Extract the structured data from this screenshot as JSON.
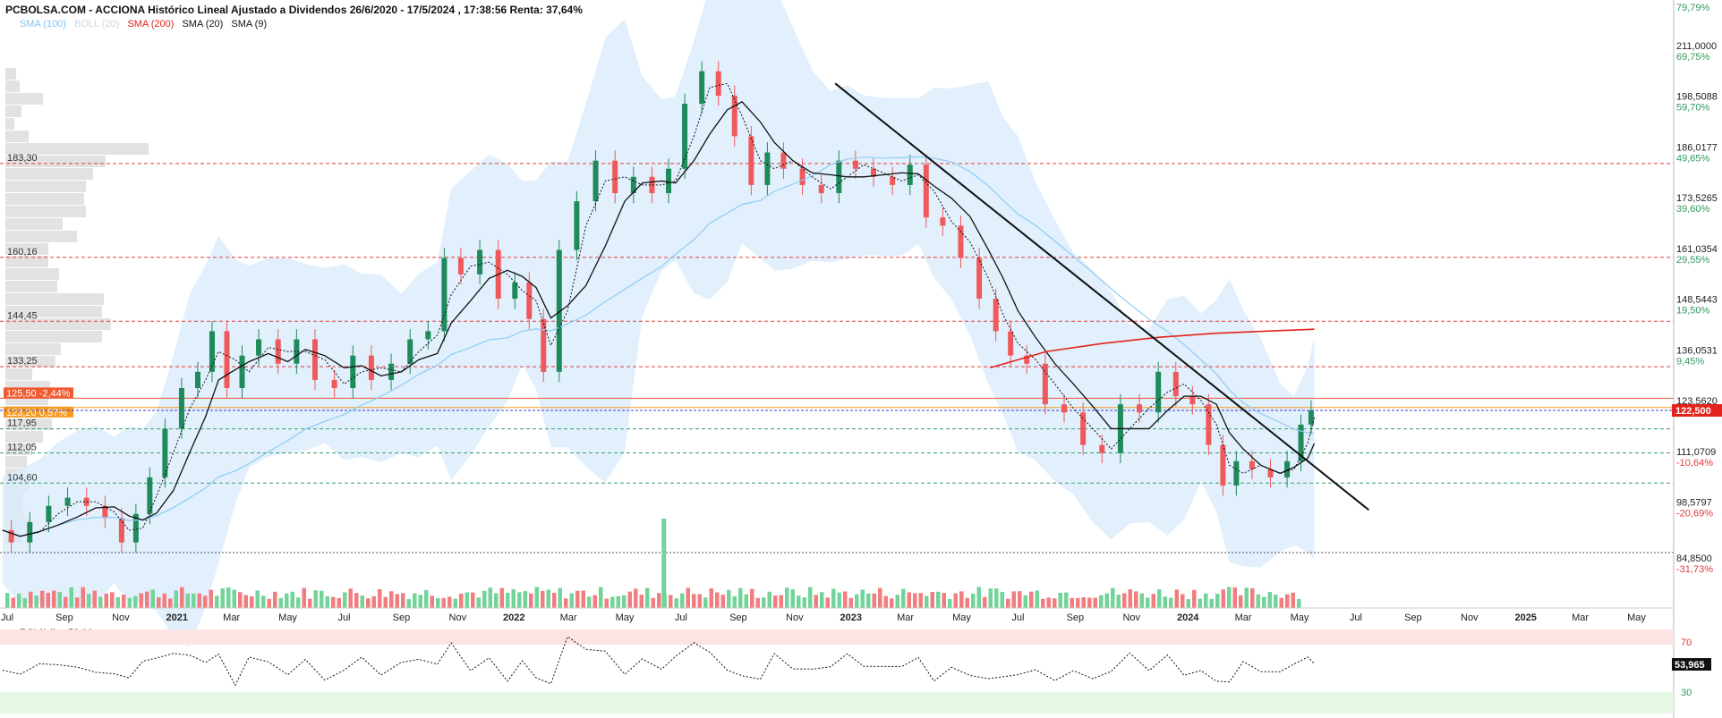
{
  "header": {
    "title": "PCBOLSA.COM - ACCIONA Histórico Lineal Ajustado a Dividendos 26/6/2020 - 17/5/2024 , 17:38:56 Renta: 37,64%",
    "top_right_pct": "79,79%"
  },
  "legend": [
    {
      "label": "SMA (100)",
      "color": "#7cc4f4"
    },
    {
      "label": "BOLL (20)",
      "color": "#cfd8e0"
    },
    {
      "label": "SMA (200)",
      "color": "#e3231b"
    },
    {
      "label": "SMA (20)",
      "color": "#111111"
    },
    {
      "label": "SMA (9)",
      "color": "#111111"
    }
  ],
  "rsi": {
    "label": "RSI (14)",
    "value": "53,96",
    "level_high": "70",
    "level_low": "30",
    "current_tag": "53,965"
  },
  "chart_data": {
    "type": "candlestick",
    "price_axis_ticks": [
      {
        "price": "211,0000",
        "pct": "69,75%"
      },
      {
        "price": "198,5088",
        "pct": "59,70%"
      },
      {
        "price": "186,0177",
        "pct": "49,65%"
      },
      {
        "price": "173,5265",
        "pct": "39,60%"
      },
      {
        "price": "161,0354",
        "pct": "29,55%"
      },
      {
        "price": "148,5443",
        "pct": "19,50%"
      },
      {
        "price": "136,0531",
        "pct": "9,45%"
      },
      {
        "price": "123,5620",
        "pct": ""
      },
      {
        "price": "111,0709",
        "pct": "-10,64%"
      },
      {
        "price": "98,5797",
        "pct": "-20,69%"
      },
      {
        "price": "84,8500",
        "pct": "-31,73%"
      }
    ],
    "last_price_tag": "122,500",
    "x_ticks": [
      "Jul",
      "Sep",
      "Nov",
      "2021",
      "Mar",
      "May",
      "Jul",
      "Sep",
      "Nov",
      "2022",
      "Mar",
      "May",
      "Jul",
      "Sep",
      "Nov",
      "2023",
      "Mar",
      "May",
      "Jul",
      "Sep",
      "Nov",
      "2024",
      "Mar",
      "May",
      "Jul",
      "Sep",
      "Nov",
      "2025",
      "Mar",
      "May"
    ],
    "levels": [
      {
        "label": "183,30",
        "value": 183.3
      },
      {
        "label": "160,16",
        "value": 160.16
      },
      {
        "label": "144,45",
        "value": 144.45
      },
      {
        "label": "133,25",
        "value": 133.25
      },
      {
        "label": "117,95",
        "value": 117.95
      },
      {
        "label": "112,05",
        "value": 112.05
      },
      {
        "label": "104,60",
        "value": 104.6
      }
    ],
    "price_tags": [
      {
        "label": "125,50 -2,44%",
        "value": 125.5,
        "color": "#ef5a30"
      },
      {
        "label": "123,20 0,57%",
        "value": 123.2,
        "color": "#f79a1e"
      }
    ],
    "volume_profile": [
      12,
      16,
      42,
      18,
      10,
      26,
      160,
      112,
      98,
      90,
      88,
      90,
      64,
      80,
      48,
      48,
      60,
      58,
      110,
      108,
      118,
      108,
      62,
      56,
      30,
      50,
      48,
      48,
      52,
      42,
      30,
      24,
      22,
      26,
      20,
      20,
      24,
      18
    ],
    "close_series": [
      {
        "d": "2020-06-26",
        "v": 93
      },
      {
        "d": "2020-07-15",
        "v": 90
      },
      {
        "d": "2020-08-05",
        "v": 95
      },
      {
        "d": "2020-08-25",
        "v": 99
      },
      {
        "d": "2020-09-15",
        "v": 101
      },
      {
        "d": "2020-10-05",
        "v": 99
      },
      {
        "d": "2020-10-25",
        "v": 96
      },
      {
        "d": "2020-11-10",
        "v": 90
      },
      {
        "d": "2020-11-25",
        "v": 97
      },
      {
        "d": "2020-12-10",
        "v": 106
      },
      {
        "d": "2020-12-28",
        "v": 118
      },
      {
        "d": "2021-01-15",
        "v": 128
      },
      {
        "d": "2021-02-01",
        "v": 132
      },
      {
        "d": "2021-02-15",
        "v": 142
      },
      {
        "d": "2021-03-05",
        "v": 128
      },
      {
        "d": "2021-03-20",
        "v": 136
      },
      {
        "d": "2021-04-10",
        "v": 140
      },
      {
        "d": "2021-05-01",
        "v": 134
      },
      {
        "d": "2021-05-20",
        "v": 140
      },
      {
        "d": "2021-06-10",
        "v": 130
      },
      {
        "d": "2021-07-01",
        "v": 128
      },
      {
        "d": "2021-07-20",
        "v": 136
      },
      {
        "d": "2021-08-10",
        "v": 130
      },
      {
        "d": "2021-09-01",
        "v": 134
      },
      {
        "d": "2021-09-20",
        "v": 140
      },
      {
        "d": "2021-10-10",
        "v": 142
      },
      {
        "d": "2021-10-25",
        "v": 160
      },
      {
        "d": "2021-11-15",
        "v": 156
      },
      {
        "d": "2021-12-05",
        "v": 162
      },
      {
        "d": "2021-12-25",
        "v": 150
      },
      {
        "d": "2022-01-10",
        "v": 154
      },
      {
        "d": "2022-01-25",
        "v": 145
      },
      {
        "d": "2022-02-10",
        "v": 132
      },
      {
        "d": "2022-02-28",
        "v": 162
      },
      {
        "d": "2022-03-20",
        "v": 174
      },
      {
        "d": "2022-04-10",
        "v": 184
      },
      {
        "d": "2022-05-01",
        "v": 176
      },
      {
        "d": "2022-05-20",
        "v": 180
      },
      {
        "d": "2022-06-10",
        "v": 176
      },
      {
        "d": "2022-06-25",
        "v": 182
      },
      {
        "d": "2022-07-15",
        "v": 198
      },
      {
        "d": "2022-08-01",
        "v": 206
      },
      {
        "d": "2022-08-20",
        "v": 200
      },
      {
        "d": "2022-09-05",
        "v": 190
      },
      {
        "d": "2022-09-25",
        "v": 178
      },
      {
        "d": "2022-10-10",
        "v": 186
      },
      {
        "d": "2022-10-30",
        "v": 182
      },
      {
        "d": "2022-11-20",
        "v": 178
      },
      {
        "d": "2022-12-10",
        "v": 176
      },
      {
        "d": "2022-12-28",
        "v": 184
      },
      {
        "d": "2023-01-15",
        "v": 182
      },
      {
        "d": "2023-02-05",
        "v": 180
      },
      {
        "d": "2023-02-25",
        "v": 178
      },
      {
        "d": "2023-03-15",
        "v": 183
      },
      {
        "d": "2023-04-01",
        "v": 170
      },
      {
        "d": "2023-04-20",
        "v": 168
      },
      {
        "d": "2023-05-10",
        "v": 160
      },
      {
        "d": "2023-05-30",
        "v": 150
      },
      {
        "d": "2023-06-15",
        "v": 142
      },
      {
        "d": "2023-07-01",
        "v": 136
      },
      {
        "d": "2023-07-20",
        "v": 134
      },
      {
        "d": "2023-08-10",
        "v": 124
      },
      {
        "d": "2023-08-30",
        "v": 122
      },
      {
        "d": "2023-09-20",
        "v": 114
      },
      {
        "d": "2023-10-10",
        "v": 112
      },
      {
        "d": "2023-10-30",
        "v": 124
      },
      {
        "d": "2023-11-20",
        "v": 122
      },
      {
        "d": "2023-12-10",
        "v": 132
      },
      {
        "d": "2023-12-28",
        "v": 126
      },
      {
        "d": "2024-01-15",
        "v": 124
      },
      {
        "d": "2024-02-01",
        "v": 114
      },
      {
        "d": "2024-02-15",
        "v": 104
      },
      {
        "d": "2024-03-01",
        "v": 110
      },
      {
        "d": "2024-03-20",
        "v": 108
      },
      {
        "d": "2024-04-10",
        "v": 106
      },
      {
        "d": "2024-04-25",
        "v": 110
      },
      {
        "d": "2024-05-10",
        "v": 119
      },
      {
        "d": "2024-05-17",
        "v": 122.5
      }
    ],
    "sma200_series": [
      {
        "d": "2023-06-01",
        "v": 133
      },
      {
        "d": "2023-08-01",
        "v": 137
      },
      {
        "d": "2023-10-01",
        "v": 139
      },
      {
        "d": "2023-12-01",
        "v": 140.5
      },
      {
        "d": "2024-02-01",
        "v": 141.5
      },
      {
        "d": "2024-05-17",
        "v": 142.5
      }
    ],
    "trendline": [
      {
        "d": "2022-12-15",
        "v": 203
      },
      {
        "d": "2024-07-15",
        "v": 98
      }
    ],
    "big_volume_date": "2022-06-10"
  }
}
